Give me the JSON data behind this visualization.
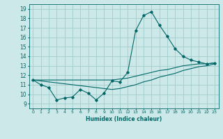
{
  "xlabel": "Humidex (Indice chaleur)",
  "ylabel": "",
  "xlim": [
    -0.5,
    23.5
  ],
  "ylim": [
    8.5,
    19.5
  ],
  "xticks": [
    0,
    1,
    2,
    3,
    4,
    5,
    6,
    7,
    8,
    9,
    10,
    11,
    12,
    13,
    14,
    15,
    16,
    17,
    18,
    19,
    20,
    21,
    22,
    23
  ],
  "yticks": [
    9,
    10,
    11,
    12,
    13,
    14,
    15,
    16,
    17,
    18,
    19
  ],
  "bg_color": "#cce8e8",
  "grid_color": "#a0cccc",
  "line_color": "#006666",
  "curve1_x": [
    0,
    1,
    2,
    3,
    4,
    5,
    6,
    7,
    8,
    9,
    10,
    11,
    12,
    13,
    14,
    15,
    16,
    17,
    18,
    19,
    20,
    21,
    22,
    23
  ],
  "curve1_y": [
    11.5,
    11.0,
    10.7,
    9.4,
    9.6,
    9.7,
    10.5,
    10.1,
    9.4,
    10.1,
    11.4,
    11.3,
    12.3,
    16.7,
    18.3,
    18.7,
    17.3,
    16.1,
    14.8,
    14.0,
    13.6,
    13.4,
    13.2,
    13.3
  ],
  "curve2_x": [
    0,
    10,
    11,
    12,
    13,
    14,
    15,
    16,
    17,
    18,
    19,
    20,
    21,
    22,
    23
  ],
  "curve2_y": [
    11.5,
    11.5,
    11.6,
    11.7,
    11.9,
    12.1,
    12.3,
    12.5,
    12.6,
    12.8,
    13.0,
    13.1,
    13.2,
    13.2,
    13.3
  ],
  "curve3_x": [
    0,
    10,
    11,
    12,
    13,
    14,
    15,
    16,
    17,
    18,
    19,
    20,
    21,
    22,
    23
  ],
  "curve3_y": [
    11.5,
    10.5,
    10.6,
    10.8,
    11.0,
    11.3,
    11.5,
    11.8,
    12.0,
    12.2,
    12.5,
    12.7,
    12.9,
    13.0,
    13.2
  ]
}
